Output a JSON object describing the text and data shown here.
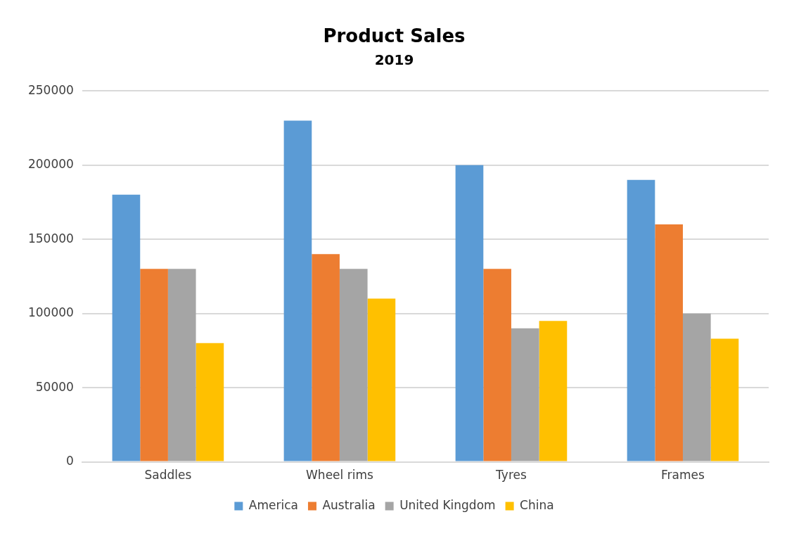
{
  "chart_data": {
    "type": "bar",
    "title": "Product Sales",
    "subtitle": "2019",
    "categories": [
      "Saddles",
      "Wheel rims",
      "Tyres",
      "Frames"
    ],
    "series": [
      {
        "name": "America",
        "color": "#5b9bd5",
        "values": [
          180000,
          230000,
          200000,
          190000
        ]
      },
      {
        "name": "Australia",
        "color": "#ed7d31",
        "values": [
          130000,
          140000,
          130000,
          160000
        ]
      },
      {
        "name": "United Kingdom",
        "color": "#a5a5a5",
        "values": [
          130000,
          130000,
          90000,
          100000
        ]
      },
      {
        "name": "China",
        "color": "#ffc000",
        "values": [
          80000,
          110000,
          95000,
          83000
        ]
      }
    ],
    "ylim": [
      0,
      250000
    ],
    "yticks": [
      0,
      50000,
      100000,
      150000,
      200000,
      250000
    ],
    "grid": "y",
    "legend": "bottom"
  }
}
